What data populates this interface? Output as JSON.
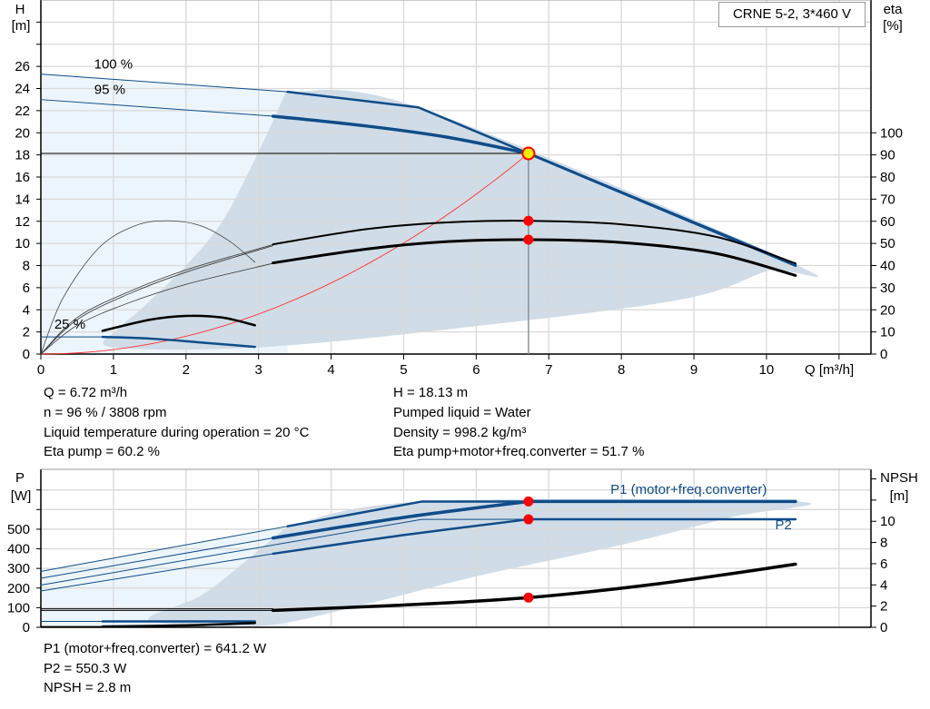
{
  "title_box": "CRNE 5-2, 3*460 V",
  "info_top": {
    "q": "Q = 6.72 m³/h",
    "n": "n = 96 % / 3808 rpm",
    "temp": "Liquid temperature during operation = 20 °C",
    "eta_pump": "Eta pump = 60.2 %",
    "h": "H = 18.13 m",
    "liquid": "Pumped liquid = Water",
    "density": "Density = 998.2 kg/m³",
    "eta_total": "Eta pump+motor+freq.converter = 51.7 %"
  },
  "info_bottom": {
    "p1": "P1 (motor+freq.converter) = 641.2 W",
    "p2": "P2 = 550.3 W",
    "npsh": "NPSH = 2.8 m"
  },
  "colors": {
    "curve_blue": "#0f4c8a",
    "region_light": "#edf5fc",
    "region_dark": "#d0dce7",
    "grid": "#d9d9d9",
    "operating_point": "#ff0000",
    "system_curve": "#ff3030",
    "duty_marker_fill": "#ffee00"
  },
  "chart_data": [
    {
      "type": "line",
      "name_box": "CRNE 5-2, 3*460 V",
      "xlabel": "Q [m³/h]",
      "ylabel": "H",
      "ylabel_unit": "[m]",
      "y2label": "eta",
      "y2label_unit": "[%]",
      "xlim": [
        0,
        11.44
      ],
      "ylim": [
        0,
        32
      ],
      "y2lim": [
        0,
        160
      ],
      "grid": true,
      "xticks": [
        0,
        1,
        2,
        3,
        4,
        5,
        6,
        7,
        8,
        9,
        10
      ],
      "yticks": [
        0,
        2,
        4,
        6,
        8,
        10,
        12,
        14,
        16,
        18,
        20,
        22,
        24,
        26
      ],
      "ygrid_extra": [
        28,
        30
      ],
      "y2ticks": [
        0,
        10,
        20,
        30,
        40,
        50,
        60,
        70,
        80,
        90,
        100
      ],
      "speed_labels": [
        {
          "text": "100 %",
          "q": 1.0,
          "h": 25.8
        },
        {
          "text": "95 %",
          "q": 0.95,
          "h": 23.5
        },
        {
          "text": "25 %",
          "q": 0.4,
          "h": 2.3
        }
      ],
      "regions": {
        "light": [
          [
            0,
            25.3
          ],
          [
            3.4,
            23.7
          ],
          [
            3.4,
            0
          ],
          [
            0,
            0
          ]
        ],
        "dark": [
          [
            3.38,
            23.7
          ],
          [
            5.2,
            22.3
          ],
          [
            10.4,
            8.1
          ],
          [
            10.0,
            7.5
          ],
          [
            8.8,
            4.9
          ],
          [
            5.7,
            2.3
          ],
          [
            3.0,
            0.6
          ],
          [
            1.0,
            0.6
          ],
          [
            1.05,
            2.2
          ],
          [
            1.37,
            4
          ],
          [
            2.0,
            8
          ],
          [
            2.5,
            12
          ],
          [
            2.98,
            18
          ],
          [
            3.38,
            23.7
          ]
        ]
      },
      "series": [
        {
          "id": "h100-thin",
          "axis": "left",
          "color": "#0f4c8a",
          "width": 1,
          "points": [
            [
              0,
              25.3
            ],
            [
              3.4,
              23.7
            ]
          ]
        },
        {
          "id": "h100",
          "axis": "left",
          "color": "#0f4c8a",
          "width": 2.5,
          "points": [
            [
              3.4,
              23.7
            ],
            [
              5.2,
              22.3
            ],
            [
              6.72,
              18.13
            ],
            [
              10.4,
              8.1
            ]
          ]
        },
        {
          "id": "h95-thin",
          "axis": "left",
          "color": "#0f4c8a",
          "width": 1,
          "points": [
            [
              0,
              23.0
            ],
            [
              3.2,
              21.5
            ]
          ]
        },
        {
          "id": "h96",
          "axis": "left",
          "color": "#0f4c8a",
          "width": 3.5,
          "smooth": true,
          "points": [
            [
              3.2,
              21.5
            ],
            [
              4.5,
              20.6
            ],
            [
              5.6,
              19.6
            ],
            [
              6.72,
              18.13
            ]
          ]
        },
        {
          "id": "h96-tail",
          "axis": "left",
          "color": "#0f4c8a",
          "width": 3,
          "points": [
            [
              6.72,
              18.13
            ],
            [
              10.4,
              8.0
            ]
          ]
        },
        {
          "id": "h25-blue-thin",
          "axis": "left",
          "color": "#0f4c8a",
          "width": 1,
          "points": [
            [
              0,
              1.55
            ],
            [
              0.85,
              1.55
            ]
          ]
        },
        {
          "id": "h25-blue",
          "axis": "left",
          "color": "#0f4c8a",
          "width": 2.5,
          "smooth": true,
          "points": [
            [
              0.85,
              1.55
            ],
            [
              1.5,
              1.4
            ],
            [
              2.2,
              1.05
            ],
            [
              2.95,
              0.65
            ]
          ]
        },
        {
          "id": "eta25",
          "axis": "left",
          "color": "#000",
          "width": 2.5,
          "smooth": true,
          "points": [
            [
              0.85,
              2.1
            ],
            [
              1.5,
              3.1
            ],
            [
              2.0,
              3.45
            ],
            [
              2.5,
              3.3
            ],
            [
              2.95,
              2.6
            ]
          ]
        },
        {
          "id": "eta-arc",
          "axis": "left",
          "color": "#444",
          "width": 0.8,
          "smooth": true,
          "points": [
            [
              0,
              0
            ],
            [
              0.3,
              5
            ],
            [
              0.8,
              9.6
            ],
            [
              1.3,
              11.6
            ],
            [
              1.75,
              12.05
            ],
            [
              2.2,
              11.6
            ],
            [
              2.6,
              10.2
            ],
            [
              2.95,
              8.3
            ]
          ]
        },
        {
          "id": "eta-pump-thin",
          "axis": "left",
          "color": "#333",
          "width": 0.8,
          "smooth": true,
          "points": [
            [
              0,
              0
            ],
            [
              0.5,
              3.3
            ],
            [
              1.2,
              5.6
            ],
            [
              2.0,
              7.6
            ],
            [
              3.2,
              9.9
            ]
          ]
        },
        {
          "id": "eta-pump-thin2",
          "axis": "left",
          "color": "#333",
          "width": 0.8,
          "smooth": true,
          "points": [
            [
              0,
              0
            ],
            [
              0.5,
              3.1
            ],
            [
              1.2,
              5.4
            ],
            [
              2.0,
              7.4
            ],
            [
              3.2,
              9.8
            ]
          ]
        },
        {
          "id": "eta-total-thin",
          "axis": "left",
          "color": "#333",
          "width": 0.8,
          "smooth": true,
          "points": [
            [
              0,
              0
            ],
            [
              0.5,
              2.6
            ],
            [
              1.2,
              4.6
            ],
            [
              2.0,
              6.3
            ],
            [
              3.2,
              8.2
            ]
          ]
        },
        {
          "id": "eta-pump",
          "axis": "right",
          "color": "#000",
          "width": 2,
          "smooth": true,
          "points": [
            [
              3.2,
              49.6
            ],
            [
              4.5,
              56.5
            ],
            [
              5.6,
              59.5
            ],
            [
              6.72,
              60.2
            ],
            [
              8.0,
              58.6
            ],
            [
              9.3,
              53
            ],
            [
              10.4,
              41
            ]
          ]
        },
        {
          "id": "eta-total",
          "axis": "right",
          "color": "#000",
          "width": 3,
          "smooth": true,
          "points": [
            [
              3.2,
              41.2
            ],
            [
              4.5,
              47.5
            ],
            [
              5.6,
              50.8
            ],
            [
              6.72,
              51.7
            ],
            [
              8.0,
              50.4
            ],
            [
              9.3,
              45.5
            ],
            [
              10.4,
              35.5
            ]
          ]
        }
      ],
      "system_curve": {
        "q": 6.72,
        "h": 18.13
      },
      "operating_point": {
        "q": 6.72,
        "h": 18.13,
        "eta_pump": 60.2,
        "eta_total": 51.7
      }
    },
    {
      "type": "line",
      "ylabel": "P",
      "ylabel_unit": "[W]",
      "y2label": "NPSH",
      "y2label_unit": "[m]",
      "xlim": [
        0,
        11.44
      ],
      "ylim": [
        0,
        805
      ],
      "y2lim": [
        0,
        14.9
      ],
      "grid": true,
      "xgrid": [
        0,
        1,
        2,
        3,
        4,
        5,
        6,
        7,
        8,
        9,
        10,
        11
      ],
      "yticks": [
        0,
        100,
        200,
        300,
        400,
        500
      ],
      "ygrid_extra": [
        600,
        700
      ],
      "y2ticks": [
        0,
        2,
        4,
        6,
        8,
        10
      ],
      "y2ticks_unlabeled": [
        12,
        14
      ],
      "series_labels": [
        {
          "text": "P1 (motor+freq.converter)",
          "q": 7.85,
          "p": 680,
          "anchor": "start"
        },
        {
          "text": "P2",
          "q": 10.35,
          "p": 500,
          "anchor": "end"
        }
      ],
      "regions": {
        "light": [
          [
            0,
            285
          ],
          [
            3.4,
            515
          ],
          [
            3.4,
            0
          ],
          [
            0,
            0
          ]
        ],
        "dark": [
          [
            3.4,
            515
          ],
          [
            5.25,
            641
          ],
          [
            10.4,
            641
          ],
          [
            9.5,
            560
          ],
          [
            8.0,
            420
          ],
          [
            6.0,
            260
          ],
          [
            4.5,
            120
          ],
          [
            3.0,
            5
          ],
          [
            1.5,
            35
          ],
          [
            2.2,
            160
          ],
          [
            2.8,
            330
          ],
          [
            3.4,
            515
          ]
        ]
      },
      "series": [
        {
          "id": "p1max-thin",
          "axis": "left",
          "color": "#0f4c8a",
          "width": 1,
          "points": [
            [
              0,
              285
            ],
            [
              3.4,
              515
            ]
          ]
        },
        {
          "id": "p1max",
          "axis": "left",
          "color": "#0f4c8a",
          "width": 2.5,
          "points": [
            [
              3.4,
              515
            ],
            [
              5.25,
              641
            ],
            [
              10.4,
              641
            ]
          ]
        },
        {
          "id": "p1-thin",
          "axis": "left",
          "color": "#0f4c8a",
          "width": 1,
          "points": [
            [
              0,
              250
            ],
            [
              3.2,
              455
            ]
          ]
        },
        {
          "id": "p1",
          "axis": "left",
          "color": "#0f4c8a",
          "width": 3.5,
          "smooth": true,
          "points": [
            [
              3.2,
              455
            ],
            [
              5.0,
              560
            ],
            [
              6.72,
              641.2
            ]
          ]
        },
        {
          "id": "p1-tail",
          "axis": "left",
          "color": "#0f4c8a",
          "width": 3.5,
          "points": [
            [
              6.72,
              641.2
            ],
            [
              10.4,
              641.2
            ]
          ]
        },
        {
          "id": "p2max-thin",
          "axis": "left",
          "color": "#0f4c8a",
          "width": 1,
          "points": [
            [
              0,
              215
            ],
            [
              5.25,
              550
            ],
            [
              6.72,
              550.3
            ]
          ]
        },
        {
          "id": "p2-thin",
          "axis": "left",
          "color": "#0f4c8a",
          "width": 1,
          "points": [
            [
              0,
              185
            ],
            [
              3.2,
              375
            ]
          ]
        },
        {
          "id": "p2",
          "axis": "left",
          "color": "#0f4c8a",
          "width": 2.5,
          "smooth": true,
          "points": [
            [
              3.2,
              375
            ],
            [
              5.0,
              470
            ],
            [
              6.72,
              550.3
            ]
          ]
        },
        {
          "id": "p2-tail",
          "axis": "left",
          "color": "#0f4c8a",
          "width": 2.5,
          "points": [
            [
              6.72,
              550.3
            ],
            [
              10.4,
              550.3
            ]
          ]
        },
        {
          "id": "p-low-blue-thin",
          "axis": "left",
          "color": "#0f4c8a",
          "width": 1,
          "points": [
            [
              0,
              30
            ],
            [
              0.85,
              30
            ]
          ]
        },
        {
          "id": "p-low-blue",
          "axis": "left",
          "color": "#0f4c8a",
          "width": 2.5,
          "points": [
            [
              0.85,
              30
            ],
            [
              2.95,
              30
            ]
          ]
        },
        {
          "id": "p-low-black-thin",
          "axis": "left",
          "color": "#000",
          "width": 1,
          "points": [
            [
              0,
              4
            ],
            [
              0.85,
              4
            ]
          ]
        },
        {
          "id": "p-low-black",
          "axis": "left",
          "color": "#000",
          "width": 2.5,
          "smooth": true,
          "points": [
            [
              0.85,
              4
            ],
            [
              2.0,
              10
            ],
            [
              2.95,
              22
            ]
          ]
        },
        {
          "id": "npsh-thin1",
          "axis": "right",
          "color": "#000",
          "width": 1,
          "points": [
            [
              0,
              1.75
            ],
            [
              3.2,
              1.75
            ]
          ]
        },
        {
          "id": "npsh-thin2",
          "axis": "right",
          "color": "#000",
          "width": 1,
          "points": [
            [
              0,
              1.6
            ],
            [
              3.2,
              1.6
            ]
          ]
        },
        {
          "id": "npsh",
          "axis": "right",
          "color": "#000",
          "width": 3.5,
          "smooth": true,
          "points": [
            [
              3.2,
              1.6
            ],
            [
              5.0,
              2.1
            ],
            [
              6.72,
              2.8
            ],
            [
              8.5,
              4.1
            ],
            [
              10.4,
              5.95
            ]
          ]
        }
      ],
      "operating_point": {
        "q": 6.72,
        "p1": 641.2,
        "p2": 550.3,
        "npsh": 2.8
      }
    }
  ]
}
